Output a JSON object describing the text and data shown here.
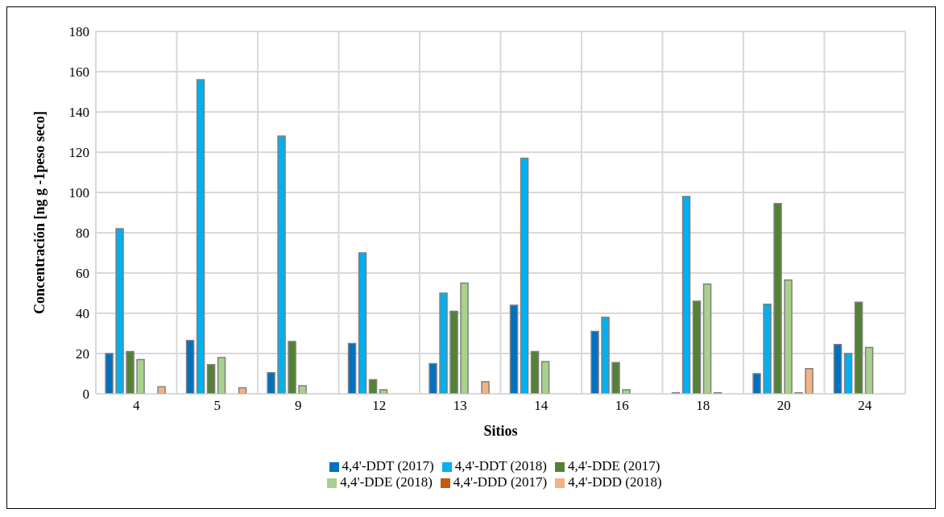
{
  "chart_data": {
    "type": "bar",
    "xlabel": "Sitios",
    "ylabel": "Concentración [ng g -1peso seco]",
    "categories": [
      "4",
      "5",
      "9",
      "12",
      "13",
      "14",
      "16",
      "18",
      "20",
      "24"
    ],
    "series": [
      {
        "name": "4,4'-DDT (2017)",
        "color": "#0070c0",
        "values": [
          20,
          26.5,
          10.5,
          25,
          15,
          44,
          31,
          0.5,
          10,
          24.5
        ]
      },
      {
        "name": "4,4'-DDT (2018)",
        "color": "#00b0f0",
        "values": [
          82,
          156,
          128,
          70,
          50,
          117,
          38,
          98,
          44.5,
          20
        ]
      },
      {
        "name": "4,4'-DDE (2017)",
        "color": "#548235",
        "values": [
          21,
          14.5,
          26,
          7,
          41,
          21,
          15.5,
          46,
          94.5,
          45.5
        ]
      },
      {
        "name": "4,4'-DDE (2018)",
        "color": "#a9d18e",
        "values": [
          17,
          18,
          4,
          2,
          55,
          16,
          2,
          54.5,
          56.5,
          23
        ]
      },
      {
        "name": "4,4'-DDD (2017)",
        "color": "#c55a11",
        "values": [
          null,
          0,
          null,
          0,
          0,
          null,
          0,
          0.5,
          0.5,
          0
        ]
      },
      {
        "name": "4,4'-DDD (2018)",
        "color": "#f4b183",
        "values": [
          3.5,
          3,
          null,
          0,
          6,
          0,
          0,
          0,
          12.5,
          0
        ]
      }
    ],
    "ylim": [
      0,
      180
    ],
    "yticks": [
      0,
      20,
      40,
      60,
      80,
      100,
      120,
      140,
      160,
      180
    ],
    "grid": true,
    "legend": "bottom"
  }
}
